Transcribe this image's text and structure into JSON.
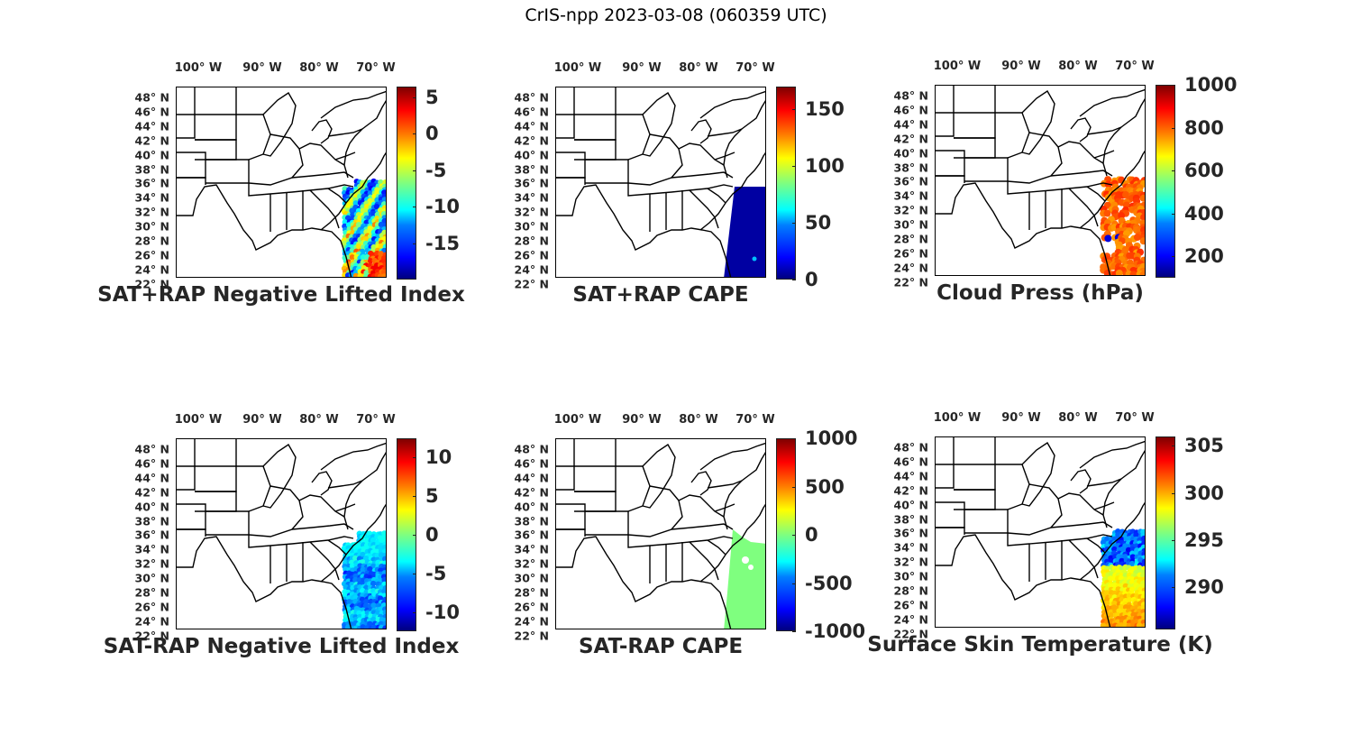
{
  "title": "CrIS-npp 2023-03-08 (060359 UTC)",
  "lon_labels": [
    "100° W",
    "90° W",
    "80° W",
    "70° W"
  ],
  "lat_labels": [
    "48° N",
    "46° N",
    "44° N",
    "42° N",
    "40° N",
    "38° N",
    "36° N",
    "34° N",
    "32° N",
    "30° N",
    "28° N",
    "26° N",
    "24° N",
    "22° N"
  ],
  "colors": {
    "colormap": "jet",
    "map_lines": "#000000",
    "text": "#262626"
  },
  "panels": [
    {
      "id": "sat-rap-neg-li",
      "title": "SAT+RAP Negative Lifted Index",
      "cbar_ticks": [
        "5",
        "0",
        "-5",
        "-10",
        "-15"
      ],
      "cbar_tick_values": [
        5,
        0,
        -5,
        -10,
        -15
      ],
      "cbar_range": [
        -20,
        6.5
      ],
      "data_style": "mixed-warm"
    },
    {
      "id": "sat-rap-cape",
      "title": "SAT+RAP CAPE",
      "cbar_ticks": [
        "150",
        "100",
        "50",
        "0"
      ],
      "cbar_tick_values": [
        150,
        100,
        50,
        0
      ],
      "cbar_range": [
        0,
        170
      ],
      "data_style": "low-blue"
    },
    {
      "id": "cloud-press",
      "title": "Cloud Press (hPa)",
      "cbar_ticks": [
        "1000",
        "800",
        "600",
        "400",
        "200"
      ],
      "cbar_tick_values": [
        1000,
        800,
        600,
        400,
        200
      ],
      "cbar_range": [
        100,
        1000
      ],
      "data_style": "orange-clouds"
    },
    {
      "id": "sat-minus-rap-neg-li",
      "title": "SAT-RAP Negative Lifted Index",
      "cbar_ticks": [
        "10",
        "5",
        "0",
        "-5",
        "-10"
      ],
      "cbar_tick_values": [
        10,
        5,
        0,
        -5,
        -10
      ],
      "cbar_range": [
        -12.5,
        12.5
      ],
      "data_style": "blue-cyan"
    },
    {
      "id": "sat-minus-rap-cape",
      "title": "SAT-RAP CAPE",
      "cbar_ticks": [
        "1000",
        "500",
        "0",
        "-500",
        "-1000"
      ],
      "cbar_tick_values": [
        1000,
        500,
        0,
        -500,
        -1000
      ],
      "cbar_range": [
        -1000,
        1000
      ],
      "data_style": "green-zero"
    },
    {
      "id": "surface-skin-temp",
      "title": "Surface Skin Temperature (K)",
      "cbar_ticks": [
        "305",
        "300",
        "295",
        "290"
      ],
      "cbar_tick_values": [
        305,
        300,
        295,
        290
      ],
      "cbar_range": [
        285.5,
        306
      ],
      "data_style": "yellow-south"
    }
  ]
}
